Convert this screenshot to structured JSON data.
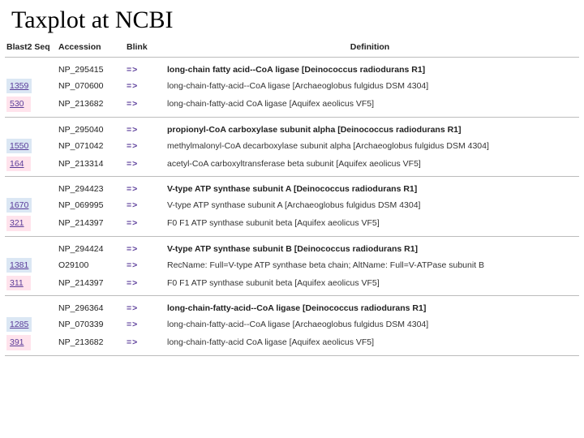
{
  "title": "Taxplot at NCBI",
  "columns": {
    "blast2seq": "Blast2 Seq",
    "accession": "Accession",
    "blink": "Blink",
    "definition": "Definition"
  },
  "blink_glyph": "=>",
  "colors": {
    "badge_blue": "#dbe7f4",
    "badge_pink": "#ffe3ec",
    "link": "#5a3c99",
    "rule": "#bcbcbc"
  },
  "groups": [
    {
      "rows": [
        {
          "blast": "",
          "badge_color": "",
          "accession": "NP_295415",
          "definition": "long-chain fatty acid--CoA ligase [Deinococcus radiodurans R1]",
          "first": true
        },
        {
          "blast": "1359",
          "badge_color": "#dbe7f4",
          "accession": "NP_070600",
          "definition": "long-chain-fatty-acid--CoA ligase [Archaeoglobus fulgidus DSM 4304]",
          "first": false
        },
        {
          "blast": "530",
          "badge_color": "#ffe3ec",
          "accession": "NP_213682",
          "definition": "long-chain-fatty-acid CoA ligase [Aquifex aeolicus VF5]",
          "first": false
        }
      ]
    },
    {
      "rows": [
        {
          "blast": "",
          "badge_color": "",
          "accession": "NP_295040",
          "definition": "propionyl-CoA carboxylase subunit alpha [Deinococcus radiodurans R1]",
          "first": true
        },
        {
          "blast": "1550",
          "badge_color": "#dbe7f4",
          "accession": "NP_071042",
          "definition": "methylmalonyl-CoA decarboxylase subunit alpha [Archaeoglobus fulgidus DSM 4304]",
          "first": false
        },
        {
          "blast": "164",
          "badge_color": "#ffe3ec",
          "accession": "NP_213314",
          "definition": "acetyl-CoA carboxyltransferase beta subunit [Aquifex aeolicus VF5]",
          "first": false
        }
      ]
    },
    {
      "rows": [
        {
          "blast": "",
          "badge_color": "",
          "accession": "NP_294423",
          "definition": "V-type ATP synthase subunit A [Deinococcus radiodurans R1]",
          "first": true
        },
        {
          "blast": "1670",
          "badge_color": "#dbe7f4",
          "accession": "NP_069995",
          "definition": "V-type ATP synthase subunit A [Archaeoglobus fulgidus DSM 4304]",
          "first": false
        },
        {
          "blast": "321",
          "badge_color": "#ffe3ec",
          "accession": "NP_214397",
          "definition": "F0 F1 ATP synthase subunit beta [Aquifex aeolicus VF5]",
          "first": false
        }
      ]
    },
    {
      "rows": [
        {
          "blast": "",
          "badge_color": "",
          "accession": "NP_294424",
          "definition": "V-type ATP synthase subunit B [Deinococcus radiodurans R1]",
          "first": true
        },
        {
          "blast": "1381",
          "badge_color": "#dbe7f4",
          "accession": "O29100",
          "definition": "RecName: Full=V-type ATP synthase beta chain; AltName: Full=V-ATPase subunit B",
          "first": false
        },
        {
          "blast": "311",
          "badge_color": "#ffe3ec",
          "accession": "NP_214397",
          "definition": "F0 F1 ATP synthase subunit beta [Aquifex aeolicus VF5]",
          "first": false
        }
      ]
    },
    {
      "rows": [
        {
          "blast": "",
          "badge_color": "",
          "accession": "NP_296364",
          "definition": "long-chain-fatty-acid--CoA ligase [Deinococcus radiodurans R1]",
          "first": true
        },
        {
          "blast": "1285",
          "badge_color": "#dbe7f4",
          "accession": "NP_070339",
          "definition": "long-chain-fatty-acid--CoA ligase [Archaeoglobus fulgidus DSM 4304]",
          "first": false
        },
        {
          "blast": "391",
          "badge_color": "#ffe3ec",
          "accession": "NP_213682",
          "definition": "long-chain-fatty-acid CoA ligase [Aquifex aeolicus VF5]",
          "first": false
        }
      ]
    }
  ]
}
